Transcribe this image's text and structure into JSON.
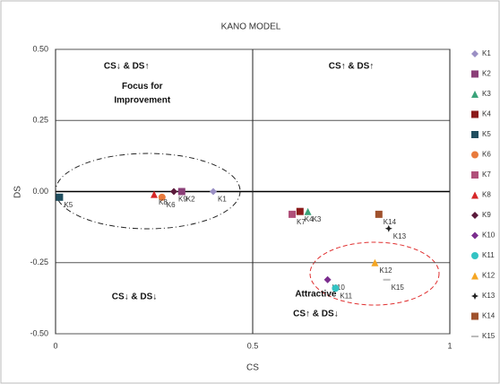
{
  "chart_data": {
    "type": "scatter",
    "title": "KANO MODEL",
    "x_label": "CS",
    "y_label": "DS",
    "xlim": [
      0,
      1
    ],
    "ylim": [
      -0.5,
      0.5
    ],
    "xticks": [
      0,
      0.5,
      1
    ],
    "yticks": [
      {
        "value": 0.5,
        "label": "0.50"
      },
      {
        "value": 0.25,
        "label": "0.25"
      },
      {
        "value": 0,
        "label": "0.00"
      },
      {
        "value": -0.25,
        "label": "-0.25"
      },
      {
        "value": -0.5,
        "label": "-0.50"
      }
    ],
    "grid": true,
    "legend": "right",
    "annotations": [
      {
        "text": "CS↓ & DS↑",
        "x": 0.18,
        "y": 0.44
      },
      {
        "text": "Focus for",
        "x": 0.22,
        "y": 0.37
      },
      {
        "text": "Improvement",
        "x": 0.22,
        "y": 0.32
      },
      {
        "text": "CS↑ & DS↑",
        "x": 0.75,
        "y": 0.44
      },
      {
        "text": "CS↓ & DS↓",
        "x": 0.2,
        "y": -0.37
      },
      {
        "text": "Attractive",
        "x": 0.66,
        "y": -0.36
      },
      {
        "text": "CS↑ & DS↓",
        "x": 0.66,
        "y": -0.43
      }
    ],
    "series": [
      {
        "name": "K1",
        "color": "#9a8fc4",
        "marker": "diamond",
        "x": [
          0.4
        ],
        "values": [
          0.0
        ]
      },
      {
        "name": "K2",
        "color": "#8b3f78",
        "marker": "square",
        "x": [
          0.32
        ],
        "values": [
          0.0
        ]
      },
      {
        "name": "K3",
        "color": "#3aa37a",
        "marker": "triangle",
        "x": [
          0.64
        ],
        "values": [
          -0.07
        ]
      },
      {
        "name": "K4",
        "color": "#8b1a1a",
        "marker": "square",
        "x": [
          0.62
        ],
        "values": [
          -0.07
        ]
      },
      {
        "name": "K5",
        "color": "#1f4e5f",
        "marker": "square",
        "x": [
          0.01
        ],
        "values": [
          -0.02
        ]
      },
      {
        "name": "K6",
        "color": "#e87a3c",
        "marker": "circle",
        "x": [
          0.27
        ],
        "values": [
          -0.02
        ]
      },
      {
        "name": "K7",
        "color": "#b0507a",
        "marker": "square",
        "x": [
          0.6
        ],
        "values": [
          -0.08
        ]
      },
      {
        "name": "K8",
        "color": "#d62728",
        "marker": "triangle",
        "x": [
          0.25
        ],
        "values": [
          -0.01
        ]
      },
      {
        "name": "K9",
        "color": "#5a1a3a",
        "marker": "diamond",
        "x": [
          0.3
        ],
        "values": [
          0.0
        ]
      },
      {
        "name": "K10",
        "color": "#7b2d8e",
        "marker": "diamond",
        "x": [
          0.69
        ],
        "values": [
          -0.31
        ]
      },
      {
        "name": "K11",
        "color": "#33c3c3",
        "marker": "circle",
        "x": [
          0.71
        ],
        "values": [
          -0.34
        ]
      },
      {
        "name": "K12",
        "color": "#f5a623",
        "marker": "triangle",
        "x": [
          0.81
        ],
        "values": [
          -0.25
        ]
      },
      {
        "name": "K13",
        "color": "#222222",
        "marker": "star",
        "x": [
          0.845
        ],
        "values": [
          -0.13
        ]
      },
      {
        "name": "K14",
        "color": "#a0522d",
        "marker": "square",
        "x": [
          0.82
        ],
        "values": [
          -0.08
        ]
      },
      {
        "name": "K15",
        "color": "#bbbbbb",
        "marker": "cross",
        "x": [
          0.84
        ],
        "values": [
          -0.31
        ]
      }
    ]
  }
}
